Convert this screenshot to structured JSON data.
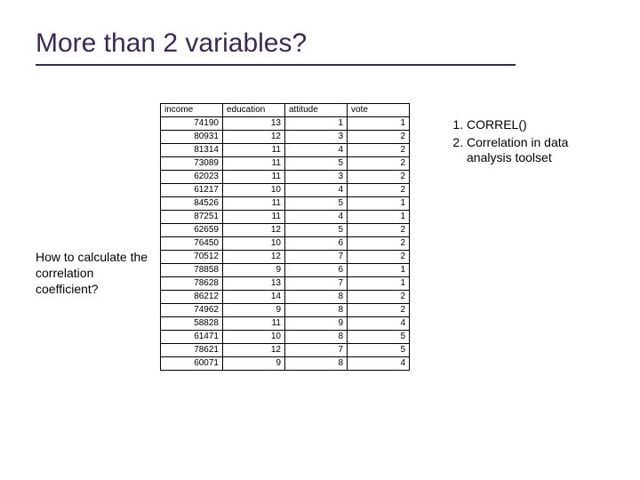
{
  "title": "More than 2 variables?",
  "left_text": "How to calculate the correlation coefficient?",
  "right_list": [
    "CORREL()",
    "Correlation in data analysis toolset"
  ],
  "table": {
    "columns": [
      "income",
      "education",
      "attitude",
      "vote"
    ],
    "rows": [
      [
        "74190",
        "13",
        "1",
        "1"
      ],
      [
        "80931",
        "12",
        "3",
        "2"
      ],
      [
        "81314",
        "11",
        "4",
        "2"
      ],
      [
        "73089",
        "11",
        "5",
        "2"
      ],
      [
        "62023",
        "11",
        "3",
        "2"
      ],
      [
        "61217",
        "10",
        "4",
        "2"
      ],
      [
        "84526",
        "11",
        "5",
        "1"
      ],
      [
        "87251",
        "11",
        "4",
        "1"
      ],
      [
        "62659",
        "12",
        "5",
        "2"
      ],
      [
        "76450",
        "10",
        "6",
        "2"
      ],
      [
        "70512",
        "12",
        "7",
        "2"
      ],
      [
        "78858",
        "9",
        "6",
        "1"
      ],
      [
        "78628",
        "13",
        "7",
        "1"
      ],
      [
        "86212",
        "14",
        "8",
        "2"
      ],
      [
        "74962",
        "9",
        "8",
        "2"
      ],
      [
        "58828",
        "11",
        "9",
        "4"
      ],
      [
        "61471",
        "10",
        "8",
        "5"
      ],
      [
        "78621",
        "12",
        "7",
        "5"
      ],
      [
        "60071",
        "9",
        "8",
        "4"
      ]
    ]
  }
}
